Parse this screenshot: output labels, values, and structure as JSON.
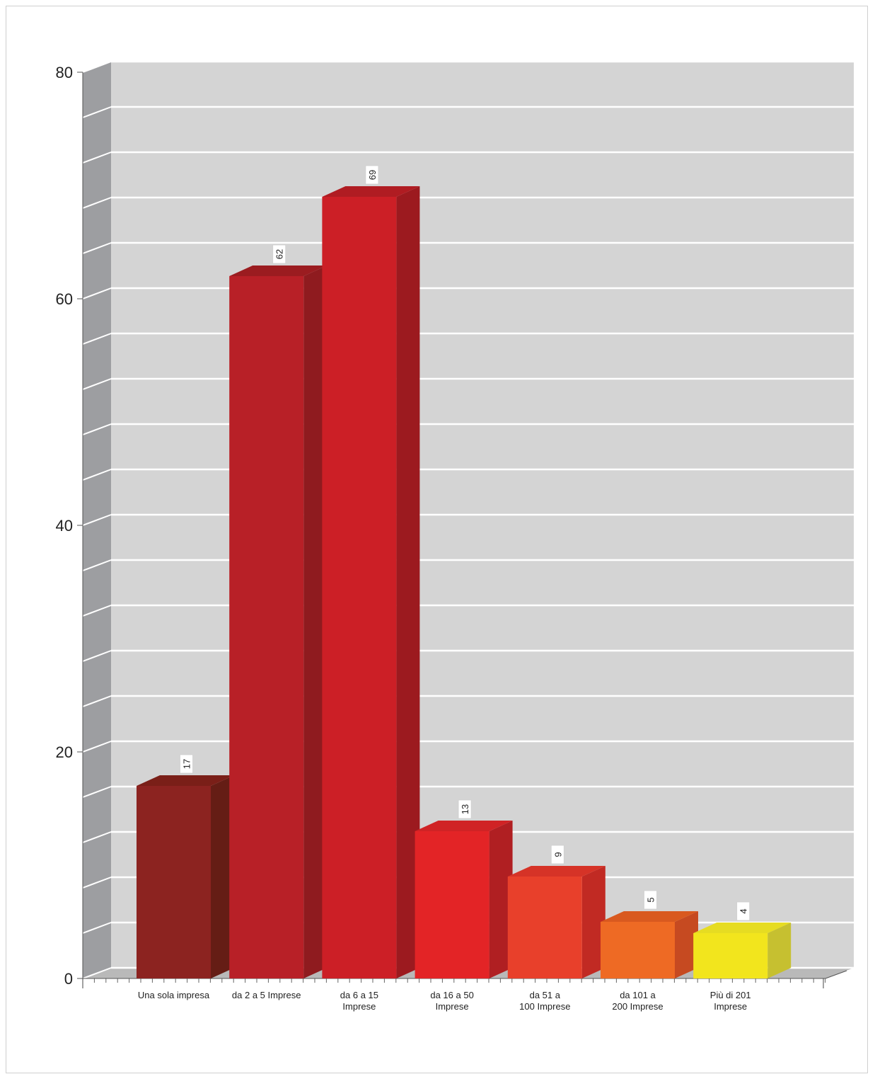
{
  "chart_data": {
    "type": "bar",
    "title": "",
    "xlabel": "",
    "ylabel": "",
    "ylim": [
      0,
      80
    ],
    "y_ticks": [
      "0",
      "20",
      "40",
      "60",
      "80"
    ],
    "grid": true,
    "three_d": true,
    "categories": [
      "Una sola impresa",
      "da 2 a 5 Imprese",
      "da 6 a 15|Imprese",
      "da 16 a 50|Imprese",
      "da 51 a|100 Imprese",
      "da 101 a|200 Imprese",
      "Più di 201|Imprese"
    ],
    "values": [
      17,
      62,
      69,
      13,
      9,
      5,
      4
    ],
    "data_labels": [
      "17",
      "62",
      "69",
      "13",
      "9",
      "5",
      "4"
    ],
    "colors": [
      "#8c2320",
      "#b82027",
      "#cc1f26",
      "#e32426",
      "#e8402b",
      "#ee6a24",
      "#f2e51d"
    ],
    "side_colors": [
      "#651d15",
      "#8f1b1f",
      "#9c1a1f",
      "#b01f22",
      "#c12a23",
      "#c64a21",
      "#c6c030"
    ],
    "top_colors": [
      "#7a1f18",
      "#9b1c20",
      "#b01c22",
      "#d02325",
      "#d63327",
      "#d9591f",
      "#e6dc22"
    ]
  }
}
